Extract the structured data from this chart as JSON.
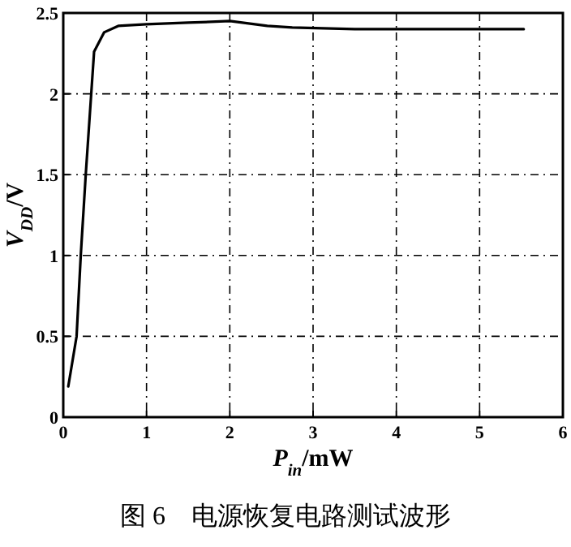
{
  "chart_data": {
    "type": "line",
    "xlabel": "*P*$_{in}$/mW",
    "ylabel": "*V*$_{DD}$/V",
    "annotations": [
      "图 6　电源恢复电路测试波形"
    ],
    "xlim": [
      0,
      6
    ],
    "ylim": [
      0,
      2.5
    ],
    "xticks": [
      0,
      1,
      2,
      3,
      4,
      5,
      6
    ],
    "yticks": [
      0,
      0.5,
      1,
      1.5,
      2,
      2.5
    ],
    "grid": true,
    "line_style": "solid",
    "marker": "none",
    "series": [
      {
        "color": "#000000",
        "x": [
          0.06,
          0.16,
          0.21,
          0.27,
          0.37,
          0.49,
          0.66,
          1.0,
          1.5,
          2.0,
          2.45,
          2.75,
          3.5,
          4.1,
          5.53
        ],
        "values": [
          0.19,
          0.5,
          1.0,
          1.5,
          2.26,
          2.38,
          2.42,
          2.43,
          2.44,
          2.45,
          2.42,
          2.41,
          2.4,
          2.4,
          2.4
        ]
      }
    ]
  }
}
